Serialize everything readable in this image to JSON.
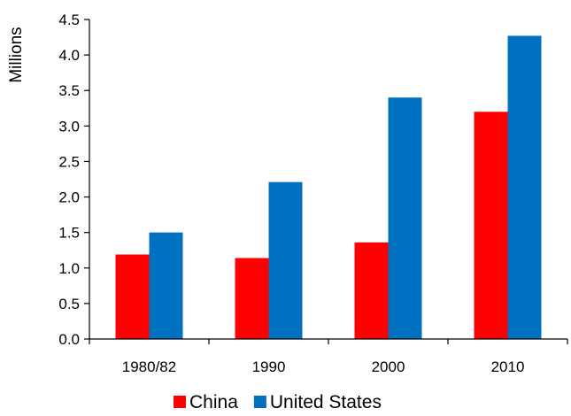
{
  "chart_data": {
    "type": "bar",
    "title": "",
    "xlabel": "",
    "ylabel": "Millions",
    "ylim": [
      0,
      4.5
    ],
    "yticks": [
      "0.0",
      "0.5",
      "1.0",
      "1.5",
      "2.0",
      "2.5",
      "3.0",
      "3.5",
      "4.0",
      "4.5"
    ],
    "categories": [
      "1980/82",
      "1990",
      "2000",
      "2010"
    ],
    "series": [
      {
        "name": "China",
        "color": "#ff0000",
        "values": [
          1.19,
          1.14,
          1.36,
          3.2
        ]
      },
      {
        "name": "United States",
        "color": "#0070c0",
        "values": [
          1.5,
          2.21,
          3.4,
          4.27
        ]
      }
    ],
    "grid": false,
    "legend_position": "bottom"
  }
}
